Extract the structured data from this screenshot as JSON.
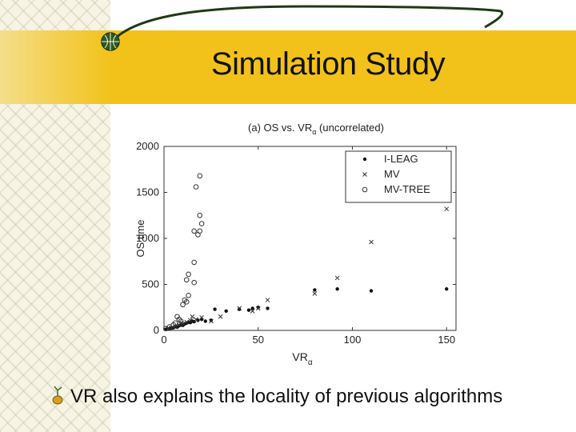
{
  "slide": {
    "title": "Simulation Study",
    "bullet": "VR also explains the locality of previous algorithms",
    "colors": {
      "band": "#f2c21a",
      "curve": "#1f3a14",
      "text": "#111111"
    },
    "icons": {
      "title_badge": "globe-badge-icon",
      "bullet": "sprout-bullet-icon"
    }
  },
  "chart_data": {
    "type": "scatter",
    "title_main": "(a) OS vs. VR",
    "title_sub": "α",
    "title_tail": " (uncorrelated)",
    "xlabel_main": "VR",
    "xlabel_sub": "α",
    "ylabel": "OS time",
    "xlim": [
      0,
      155
    ],
    "ylim": [
      0,
      2000
    ],
    "xticks": [
      0,
      50,
      100,
      150
    ],
    "yticks": [
      0,
      500,
      1000,
      1500,
      2000
    ],
    "grid": false,
    "legend_position": "top-right",
    "series": [
      {
        "name": "I-LEAG",
        "marker": "dot",
        "points": [
          [
            1,
            10
          ],
          [
            2,
            15
          ],
          [
            3,
            20
          ],
          [
            4,
            25
          ],
          [
            5,
            30
          ],
          [
            6,
            40
          ],
          [
            7,
            35
          ],
          [
            8,
            50
          ],
          [
            9,
            60
          ],
          [
            10,
            55
          ],
          [
            11,
            70
          ],
          [
            12,
            80
          ],
          [
            13,
            90
          ],
          [
            14,
            85
          ],
          [
            15,
            100
          ],
          [
            16,
            95
          ],
          [
            18,
            110
          ],
          [
            20,
            120
          ],
          [
            22,
            100
          ],
          [
            25,
            110
          ],
          [
            27,
            230
          ],
          [
            33,
            210
          ],
          [
            40,
            230
          ],
          [
            45,
            220
          ],
          [
            47,
            240
          ],
          [
            50,
            250
          ],
          [
            55,
            240
          ],
          [
            80,
            440
          ],
          [
            92,
            450
          ],
          [
            110,
            430
          ],
          [
            150,
            450
          ]
        ]
      },
      {
        "name": "MV",
        "marker": "x",
        "points": [
          [
            2,
            20
          ],
          [
            4,
            30
          ],
          [
            6,
            45
          ],
          [
            8,
            60
          ],
          [
            9,
            80
          ],
          [
            10,
            70
          ],
          [
            12,
            90
          ],
          [
            14,
            110
          ],
          [
            15,
            150
          ],
          [
            17,
            120
          ],
          [
            20,
            140
          ],
          [
            25,
            100
          ],
          [
            30,
            150
          ],
          [
            40,
            240
          ],
          [
            47,
            210
          ],
          [
            50,
            240
          ],
          [
            55,
            330
          ],
          [
            80,
            400
          ],
          [
            92,
            570
          ],
          [
            110,
            960
          ],
          [
            150,
            1320
          ]
        ]
      },
      {
        "name": "MV-TREE",
        "marker": "circle",
        "points": [
          [
            1,
            20
          ],
          [
            3,
            40
          ],
          [
            5,
            60
          ],
          [
            6,
            80
          ],
          [
            7,
            150
          ],
          [
            8,
            120
          ],
          [
            9,
            100
          ],
          [
            10,
            280
          ],
          [
            11,
            330
          ],
          [
            12,
            310
          ],
          [
            13,
            380
          ],
          [
            12,
            550
          ],
          [
            13,
            610
          ],
          [
            16,
            740
          ],
          [
            16,
            520
          ],
          [
            16,
            1080
          ],
          [
            17,
            1560
          ],
          [
            18,
            1040
          ],
          [
            19,
            1080
          ],
          [
            19,
            1250
          ],
          [
            20,
            1160
          ],
          [
            19,
            1680
          ]
        ]
      }
    ]
  }
}
